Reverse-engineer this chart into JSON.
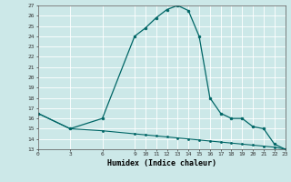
{
  "xlabel": "Humidex (Indice chaleur)",
  "bg_color": "#cce8e8",
  "line_color": "#006666",
  "grid_color": "#ffffff",
  "x_ticks": [
    0,
    3,
    6,
    9,
    10,
    11,
    12,
    13,
    14,
    15,
    16,
    17,
    18,
    19,
    20,
    21,
    22,
    23
  ],
  "ylim": [
    13,
    27
  ],
  "xlim": [
    0,
    23
  ],
  "y_ticks": [
    13,
    14,
    15,
    16,
    17,
    18,
    19,
    20,
    21,
    22,
    23,
    24,
    25,
    26,
    27
  ],
  "series1_x": [
    0,
    3,
    6,
    9,
    10,
    11,
    12,
    13,
    14,
    15,
    16,
    17,
    18,
    19,
    20,
    21,
    22,
    23
  ],
  "series1_y": [
    16.5,
    15.0,
    16.0,
    24.0,
    24.8,
    25.8,
    26.6,
    27.0,
    26.5,
    24.0,
    18.0,
    16.5,
    16.0,
    16.0,
    15.2,
    15.0,
    13.5,
    13.0
  ],
  "series2_x": [
    0,
    3,
    6,
    9,
    10,
    11,
    12,
    13,
    14,
    15,
    16,
    17,
    18,
    19,
    20,
    21,
    22,
    23
  ],
  "series2_y": [
    16.5,
    15.0,
    14.8,
    14.5,
    14.4,
    14.3,
    14.2,
    14.1,
    14.0,
    13.9,
    13.8,
    13.7,
    13.6,
    13.5,
    13.4,
    13.3,
    13.2,
    13.0
  ],
  "figsize": [
    3.2,
    2.0
  ],
  "dpi": 100
}
